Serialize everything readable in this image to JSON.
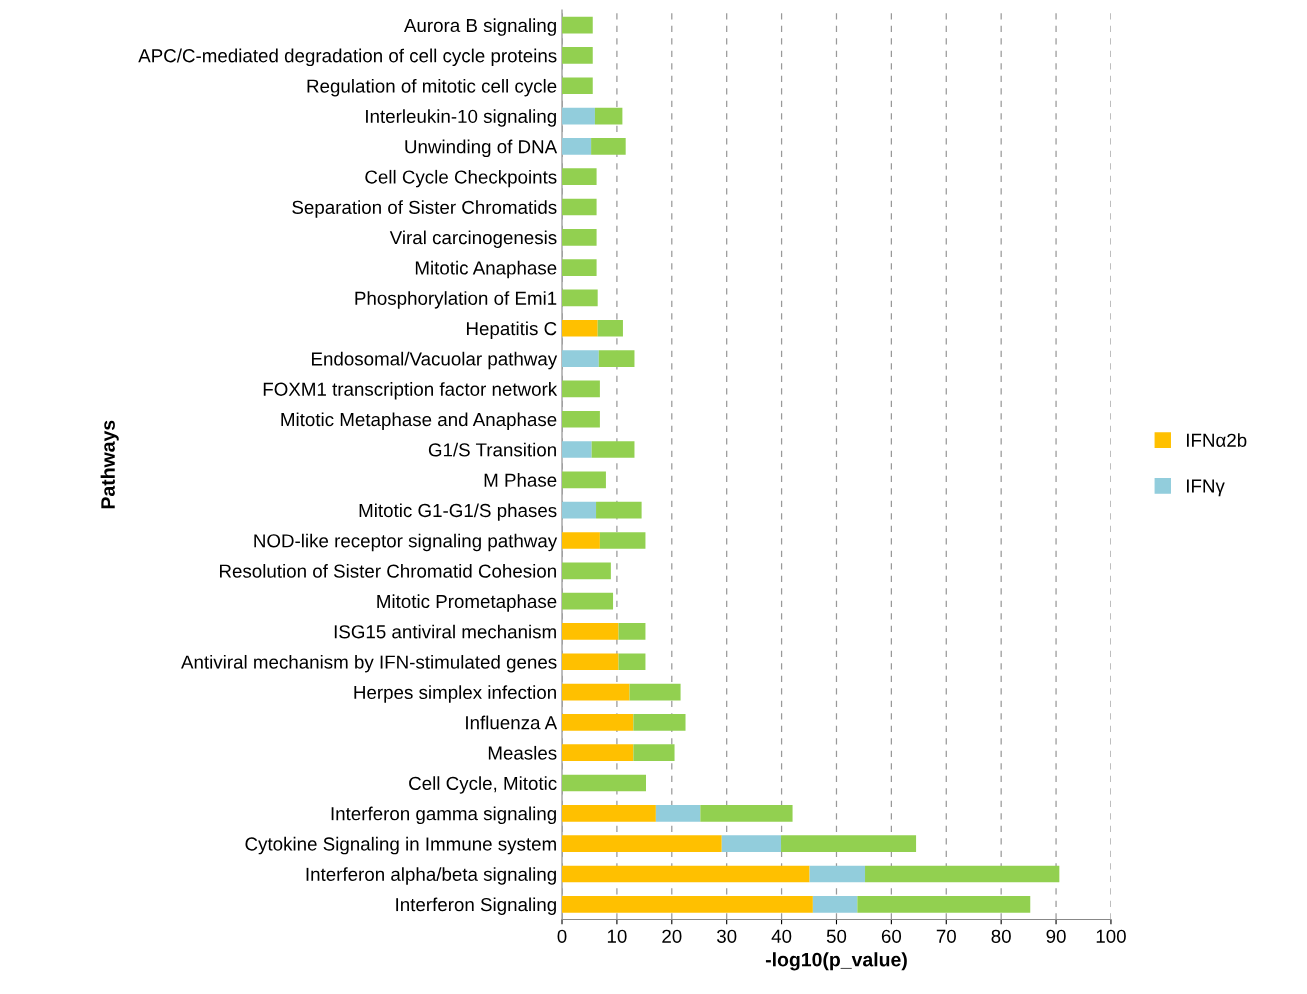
{
  "chart_data": {
    "type": "bar",
    "orientation": "horizontal",
    "stacked": true,
    "xlabel": "-log10(p_value)",
    "ylabel": "Pathways",
    "categories": [
      "Aurora B signaling",
      "APC/C-mediated degradation of cell cycle proteins",
      "Regulation of mitotic cell cycle",
      "Interleukin-10 signaling",
      "Unwinding of DNA",
      "Cell Cycle Checkpoints",
      "Separation of Sister Chromatids",
      "Viral carcinogenesis",
      "Mitotic Anaphase",
      "Phosphorylation of Emi1",
      "Hepatitis C",
      "Endosomal/Vacuolar pathway",
      "FOXM1 transcription factor network",
      "Mitotic Metaphase and Anaphase",
      "G1/S Transition",
      "M Phase",
      "Mitotic G1-G1/S phases",
      "NOD-like receptor signaling pathway",
      "Resolution of Sister Chromatid Cohesion",
      "Mitotic Prometaphase",
      "ISG15 antiviral mechanism",
      "Antiviral mechanism by IFN-stimulated genes",
      "Herpes simplex infection",
      "Influenza A",
      "Measles",
      "Cell Cycle, Mitotic",
      "Interferon gamma signaling",
      "Cytokine Signaling in Immune system",
      "Interferon alpha/beta signaling",
      "Interferon Signaling"
    ],
    "series": [
      {
        "name": "IFNα2b",
        "color": "#ffc000",
        "values": [
          null,
          null,
          null,
          null,
          null,
          null,
          null,
          null,
          null,
          null,
          6.5,
          null,
          null,
          null,
          null,
          null,
          null,
          6.9,
          null,
          null,
          10.3,
          10.3,
          12.3,
          13.0,
          13.0,
          null,
          17.1,
          29.1,
          45.1,
          45.7
        ]
      },
      {
        "name": "IFNγ",
        "color": "#92cddc",
        "values": [
          null,
          null,
          null,
          6.0,
          5.3,
          null,
          null,
          null,
          null,
          null,
          null,
          6.7,
          null,
          null,
          5.4,
          null,
          6.2,
          null,
          null,
          null,
          null,
          null,
          null,
          null,
          null,
          null,
          8.1,
          10.8,
          10.1,
          8.1
        ]
      },
      {
        "color": "#92d050",
        "values": [
          5.6,
          5.6,
          5.6,
          5.0,
          6.3,
          6.3,
          6.3,
          6.3,
          6.3,
          6.5,
          4.6,
          6.5,
          6.9,
          6.9,
          7.8,
          8.0,
          8.3,
          8.3,
          8.9,
          9.3,
          4.9,
          4.9,
          9.3,
          9.5,
          7.5,
          15.3,
          16.8,
          24.6,
          35.4,
          31.5
        ]
      }
    ],
    "xlim": [
      0,
      100
    ],
    "xticks": [
      0,
      10,
      20,
      30,
      40,
      50,
      60,
      70,
      80,
      90,
      100
    ],
    "grid": "x",
    "legend": "right"
  }
}
